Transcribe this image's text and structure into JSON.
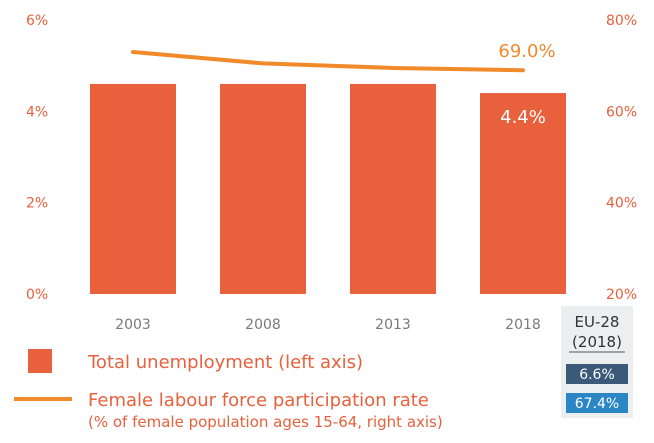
{
  "chart_data": {
    "type": "bar",
    "categories": [
      "2003",
      "2008",
      "2013",
      "2018"
    ],
    "series": [
      {
        "name": "Total unemployment (left axis)",
        "type": "bar",
        "axis": "left",
        "values": [
          4.6,
          4.6,
          4.6,
          4.4
        ],
        "color": "#e8603c"
      },
      {
        "name": "Female labour force participation rate",
        "name_sub": "(% of female population ages 15-64, right axis)",
        "type": "line",
        "axis": "right",
        "values": [
          73.0,
          70.5,
          69.5,
          69.0
        ],
        "color": "#f08a2b"
      }
    ],
    "left_axis": {
      "min": 0,
      "max": 6,
      "ticks": [
        0,
        2,
        4,
        6
      ],
      "tick_labels": [
        "0%",
        "2%",
        "4%",
        "6%"
      ]
    },
    "right_axis": {
      "min": 20,
      "max": 80,
      "ticks": [
        20,
        40,
        60,
        80
      ],
      "tick_labels": [
        "20%",
        "40%",
        "60%",
        "80%"
      ]
    },
    "data_labels": {
      "bar_last": "4.4%",
      "line_last": "69.0%"
    },
    "title": "",
    "xlabel": "",
    "ylabel": "",
    "grid": false,
    "legend_position": "bottom-left"
  },
  "eu_box": {
    "title_line1": "EU-28",
    "title_line2": "(2018)",
    "unemployment_value": "6.6%",
    "participation_value": "67.4%",
    "bg_color": "#eceef0",
    "unemployment_color": "#3b5a7a",
    "participation_color": "#2b86c5"
  }
}
